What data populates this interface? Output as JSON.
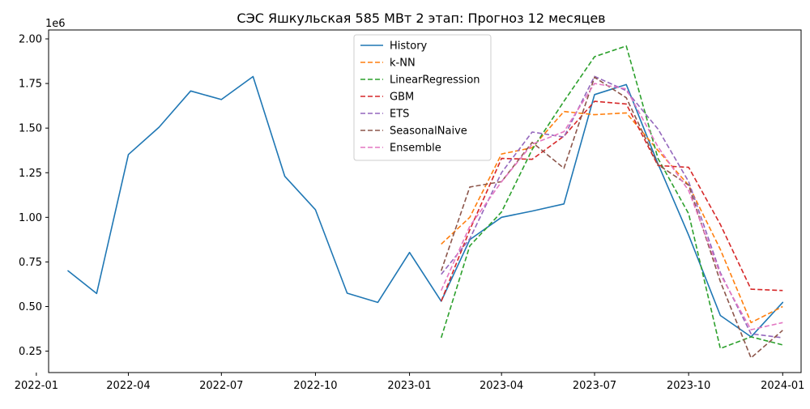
{
  "chart_data": {
    "type": "line",
    "title": "СЭС Яшкульская 585 МВт 2 этап: Прогноз 12 месяцев",
    "xlabel": "",
    "ylabel": "",
    "y_offset_text": "1e6",
    "y_scale": 1000000,
    "xlim": [
      "2022-01-13",
      "2024-01-19"
    ],
    "ylim": [
      130000,
      2050000
    ],
    "x_ticks": [
      {
        "date": "2022-01-01",
        "label": "2022-01"
      },
      {
        "date": "2022-04-01",
        "label": "2022-04"
      },
      {
        "date": "2022-07-01",
        "label": "2022-07"
      },
      {
        "date": "2022-10-01",
        "label": "2022-10"
      },
      {
        "date": "2023-01-01",
        "label": "2023-01"
      },
      {
        "date": "2023-04-01",
        "label": "2023-04"
      },
      {
        "date": "2023-07-01",
        "label": "2023-07"
      },
      {
        "date": "2023-10-01",
        "label": "2023-10"
      },
      {
        "date": "2024-01-01",
        "label": "2024-01"
      }
    ],
    "y_ticks": [
      {
        "value": 250000,
        "label": "0.25"
      },
      {
        "value": 500000,
        "label": "0.50"
      },
      {
        "value": 750000,
        "label": "0.75"
      },
      {
        "value": 1000000,
        "label": "1.00"
      },
      {
        "value": 1250000,
        "label": "1.25"
      },
      {
        "value": 1500000,
        "label": "1.50"
      },
      {
        "value": 1750000,
        "label": "1.75"
      },
      {
        "value": 2000000,
        "label": "2.00"
      }
    ],
    "grid": false,
    "legend_position": "top-center",
    "series": [
      {
        "name": "History",
        "color": "#1f77b4",
        "style": "solid",
        "x": [
          "2022-02-01",
          "2022-03-01",
          "2022-04-01",
          "2022-05-01",
          "2022-06-01",
          "2022-07-01",
          "2022-08-01",
          "2022-09-01",
          "2022-10-01",
          "2022-11-01",
          "2022-12-01",
          "2023-01-01",
          "2023-02-01",
          "2023-03-01",
          "2023-04-01",
          "2023-05-01",
          "2023-06-01",
          "2023-07-01",
          "2023-08-01",
          "2023-09-01",
          "2023-10-01",
          "2023-11-01",
          "2023-12-01",
          "2024-01-01"
        ],
        "values": [
          700000,
          573000,
          1352000,
          1505000,
          1708000,
          1660000,
          1789000,
          1230000,
          1043000,
          575000,
          523000,
          803000,
          530000,
          875000,
          1000000,
          1035000,
          1075000,
          1688000,
          1744000,
          1300000,
          900000,
          450000,
          330000,
          523000
        ]
      },
      {
        "name": "k-NN",
        "color": "#ff7f0e",
        "style": "dashed",
        "x": [
          "2023-02-01",
          "2023-03-01",
          "2023-04-01",
          "2023-05-01",
          "2023-06-01",
          "2023-07-01",
          "2023-08-01",
          "2023-09-01",
          "2023-10-01",
          "2023-11-01",
          "2023-12-01",
          "2024-01-01"
        ],
        "values": [
          850000,
          1000000,
          1355000,
          1390000,
          1593000,
          1575000,
          1585000,
          1375000,
          1180000,
          820000,
          410000,
          500000
        ]
      },
      {
        "name": "LinearRegression",
        "color": "#2ca02c",
        "style": "dashed",
        "x": [
          "2023-02-01",
          "2023-03-01",
          "2023-04-01",
          "2023-05-01",
          "2023-06-01",
          "2023-07-01",
          "2023-08-01",
          "2023-09-01",
          "2023-10-01",
          "2023-11-01",
          "2023-12-01",
          "2024-01-01"
        ],
        "values": [
          325000,
          840000,
          1030000,
          1380000,
          1650000,
          1900000,
          1960000,
          1330000,
          1020000,
          265000,
          330000,
          285000
        ]
      },
      {
        "name": "GBM",
        "color": "#d62728",
        "style": "dashed",
        "x": [
          "2023-02-01",
          "2023-03-01",
          "2023-04-01",
          "2023-05-01",
          "2023-06-01",
          "2023-07-01",
          "2023-08-01",
          "2023-09-01",
          "2023-10-01",
          "2023-11-01",
          "2023-12-01",
          "2024-01-01"
        ],
        "values": [
          530000,
          930000,
          1330000,
          1325000,
          1455000,
          1650000,
          1635000,
          1290000,
          1280000,
          960000,
          597000,
          590000
        ]
      },
      {
        "name": "ETS",
        "color": "#9467bd",
        "style": "dashed",
        "x": [
          "2023-02-01",
          "2023-03-01",
          "2023-04-01",
          "2023-05-01",
          "2023-06-01",
          "2023-07-01",
          "2023-08-01",
          "2023-09-01",
          "2023-10-01",
          "2023-11-01",
          "2023-12-01",
          "2024-01-01"
        ],
        "values": [
          680000,
          880000,
          1250000,
          1478000,
          1450000,
          1790000,
          1710000,
          1495000,
          1200000,
          690000,
          347000,
          325000
        ]
      },
      {
        "name": "SeasonalNaive",
        "color": "#8c564b",
        "style": "dashed",
        "x": [
          "2023-02-01",
          "2023-03-01",
          "2023-04-01",
          "2023-05-01",
          "2023-06-01",
          "2023-07-01",
          "2023-08-01",
          "2023-09-01",
          "2023-10-01",
          "2023-11-01",
          "2023-12-01",
          "2024-01-01"
        ],
        "values": [
          700000,
          1170000,
          1200000,
          1420000,
          1275000,
          1785000,
          1670000,
          1295000,
          1180000,
          640000,
          212000,
          367000
        ]
      },
      {
        "name": "Ensemble",
        "color": "#e377c2",
        "style": "dashed",
        "x": [
          "2023-02-01",
          "2023-03-01",
          "2023-04-01",
          "2023-05-01",
          "2023-06-01",
          "2023-07-01",
          "2023-08-01",
          "2023-09-01",
          "2023-10-01",
          "2023-11-01",
          "2023-12-01",
          "2024-01-01"
        ],
        "values": [
          590000,
          950000,
          1200000,
          1410000,
          1480000,
          1750000,
          1720000,
          1395000,
          1150000,
          680000,
          370000,
          410000
        ]
      }
    ]
  }
}
